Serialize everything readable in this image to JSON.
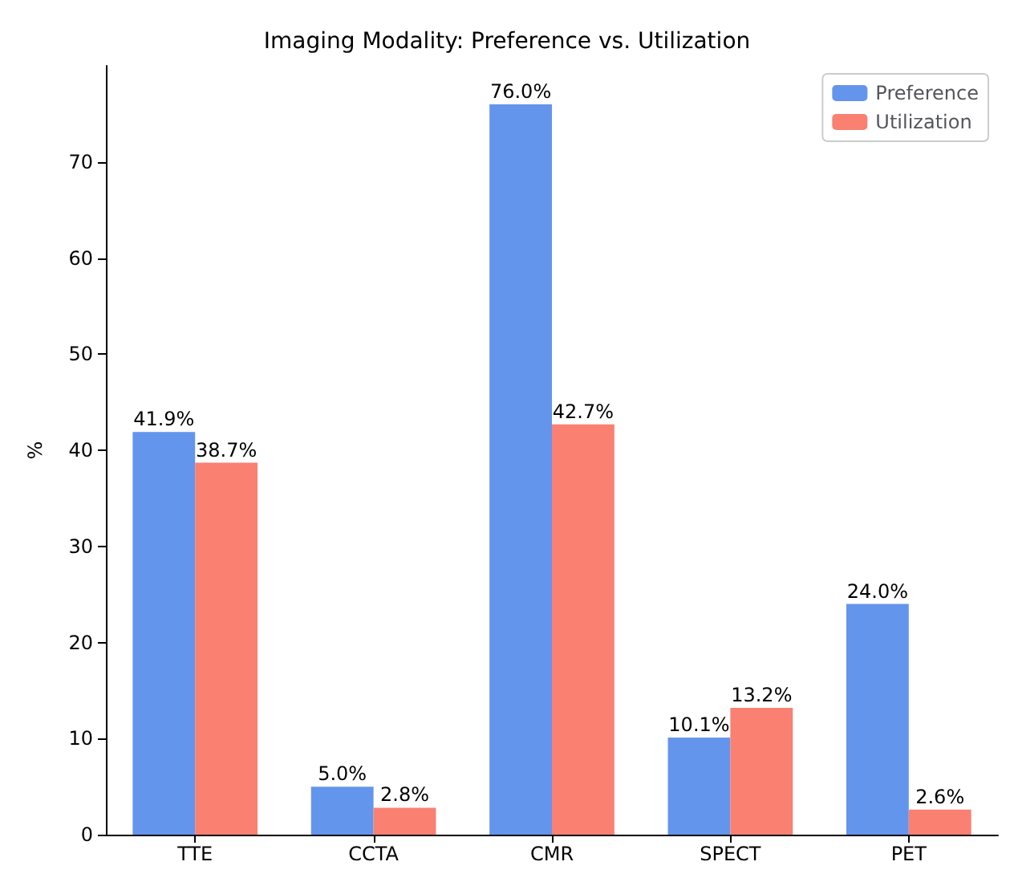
{
  "chart_data": {
    "type": "bar",
    "title": "Imaging Modality: Preference vs. Utilization",
    "ylabel": "%",
    "categories": [
      "TTE",
      "CCTA",
      "CMR",
      "SPECT",
      "PET"
    ],
    "series": [
      {
        "name": "Preference",
        "color": "#6495ed",
        "values": [
          41.9,
          5.0,
          76.0,
          10.1,
          24.0
        ],
        "value_labels": [
          "41.9%",
          "5.0%",
          "76.0%",
          "10.1%",
          "24.0%"
        ]
      },
      {
        "name": "Utilization",
        "color": "#fa8072",
        "values": [
          38.7,
          2.8,
          42.7,
          13.2,
          2.6
        ],
        "value_labels": [
          "38.7%",
          "2.8%",
          "42.7%",
          "13.2%",
          "2.6%"
        ]
      }
    ],
    "ylim": [
      0,
      80
    ],
    "yticks": [
      0,
      10,
      20,
      30,
      40,
      50,
      60,
      70
    ],
    "grid": false,
    "legend": "top right"
  }
}
